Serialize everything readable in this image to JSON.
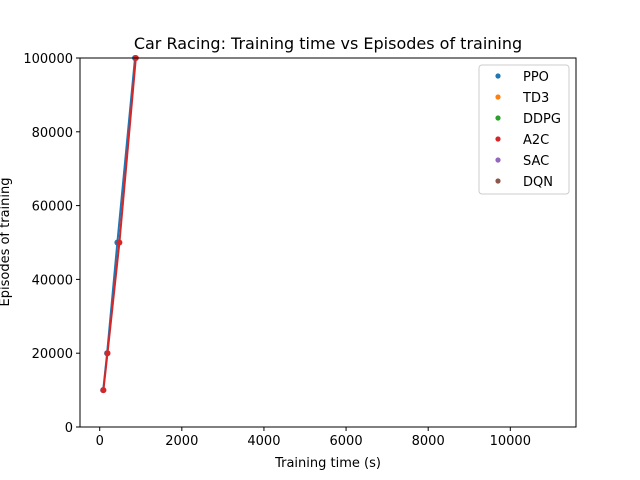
{
  "chart_data": {
    "type": "line",
    "title": "Car Racing: Training time vs Episodes of training",
    "xlabel": "Training time (s)",
    "ylabel": "Episodes of training",
    "xlim": [
      -480,
      11600
    ],
    "ylim": [
      0,
      100000
    ],
    "xticks": [
      0,
      2000,
      4000,
      6000,
      8000,
      10000
    ],
    "yticks": [
      0,
      20000,
      40000,
      60000,
      80000,
      100000
    ],
    "xtick_labels": [
      "0",
      "2000",
      "4000",
      "6000",
      "8000",
      "10000"
    ],
    "ytick_labels": [
      "0",
      "20000",
      "40000",
      "60000",
      "80000",
      "100000"
    ],
    "legend_position": "top-right",
    "grid": false,
    "series": [
      {
        "name": "PPO",
        "color": "#1f77b4",
        "x": [
          85,
          180,
          430,
          860
        ],
        "y": [
          10000,
          20000,
          50000,
          100000
        ]
      },
      {
        "name": "TD3",
        "color": "#ff7f0e",
        "x": [],
        "y": []
      },
      {
        "name": "DDPG",
        "color": "#2ca02c",
        "x": [],
        "y": []
      },
      {
        "name": "A2C",
        "color": "#d62728",
        "x": [
          90,
          190,
          480,
          880
        ],
        "y": [
          10000,
          20000,
          50000,
          100000
        ]
      },
      {
        "name": "SAC",
        "color": "#9467bd",
        "x": [],
        "y": []
      },
      {
        "name": "DQN",
        "color": "#8c564b",
        "x": [],
        "y": []
      }
    ]
  }
}
